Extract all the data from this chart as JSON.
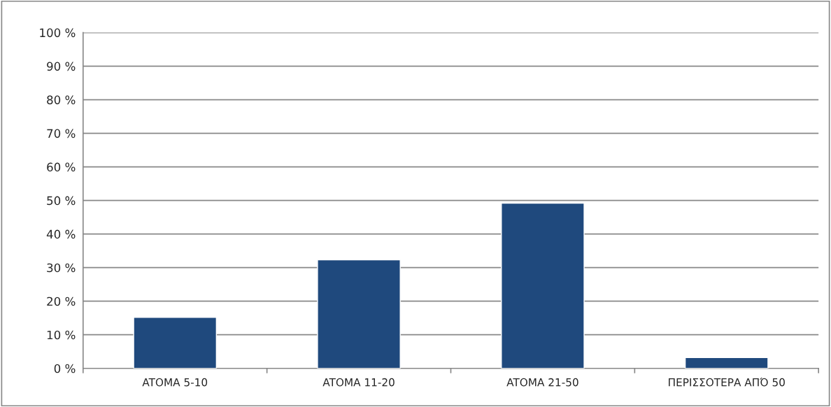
{
  "chart_data": {
    "type": "bar",
    "categories": [
      "ATOMA 5-10",
      "ATOMA 11-20",
      "ATOMA 21-50",
      "ΠΕΡΙΣΣΟΤΕΡΑ ΑΠΌ 50"
    ],
    "values": [
      15.2,
      32.3,
      49.2,
      3.2
    ],
    "color": "#1f497d",
    "ylim": [
      0,
      100
    ],
    "yticks": [
      {
        "value": 0,
        "label": "0 %"
      },
      {
        "value": 10,
        "label": "10 %"
      },
      {
        "value": 20,
        "label": "20 %"
      },
      {
        "value": 30,
        "label": "30 %"
      },
      {
        "value": 40,
        "label": "40 %"
      },
      {
        "value": 50,
        "label": "50 %"
      },
      {
        "value": 60,
        "label": "60 %"
      },
      {
        "value": 70,
        "label": "70 %"
      },
      {
        "value": 80,
        "label": "80 %"
      },
      {
        "value": 90,
        "label": "90 %"
      },
      {
        "value": 100,
        "label": "100 %"
      }
    ],
    "grid": "y"
  }
}
